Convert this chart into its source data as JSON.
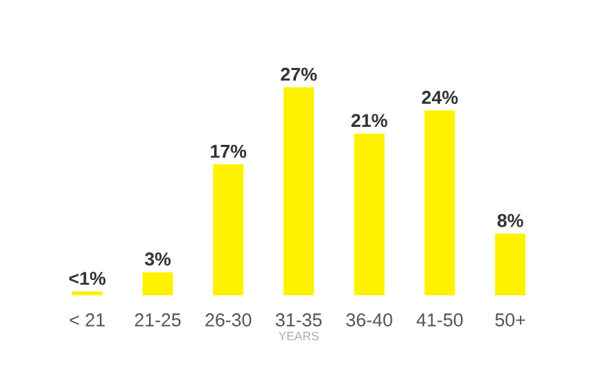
{
  "chart_data": {
    "type": "bar",
    "xlabel": "YEARS",
    "categories": [
      "< 21",
      "21-25",
      "26-30",
      "31-35",
      "36-40",
      "41-50",
      "50+"
    ],
    "values": [
      0.5,
      3,
      17,
      27,
      21,
      24,
      8
    ],
    "value_labels": [
      "<1%",
      "3%",
      "17%",
      "27%",
      "21%",
      "24%",
      "8%"
    ],
    "color": "#fff200"
  }
}
